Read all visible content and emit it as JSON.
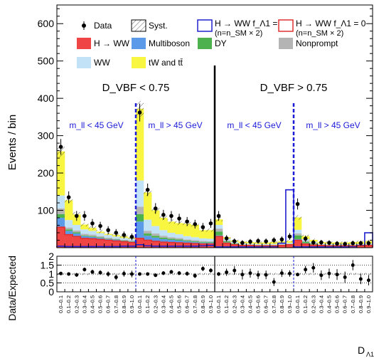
{
  "chart_data": {
    "type": "bar",
    "stacked": true,
    "ylabel": "Events / bin",
    "ratio_ylabel": "Data/Expected",
    "xlabel": "D",
    "xlabel_sub": "Λ1",
    "ylim": [
      0,
      650
    ],
    "yticks": [
      100,
      200,
      300,
      400,
      500,
      600
    ],
    "ratio_ylim": [
      0,
      2
    ],
    "ratio_yticks": [
      "0",
      "0.5",
      "1",
      "1.5",
      "2"
    ],
    "categories": [
      "0.0–0.1",
      "0.1–0.2",
      "0.2–0.3",
      "0.3–0.4",
      "0.4–0.5",
      "0.5–0.6",
      "0.6–0.7",
      "0.7–0.8",
      "0.8–0.9",
      "0.9–1.0",
      "0.0–0.1",
      "0.1–0.2",
      "0.2–0.3",
      "0.3–0.4",
      "0.4–0.5",
      "0.5–0.6",
      "0.6–0.7",
      "0.7–0.8",
      "0.8–0.9",
      "0.9–1.0",
      "0.0–0.1",
      "0.1–0.2",
      "0.2–0.3",
      "0.3–0.4",
      "0.4–0.5",
      "0.5–0.6",
      "0.6–0.7",
      "0.7–0.8",
      "0.8–0.9",
      "0.9–1.0",
      "0.0–0.1",
      "0.1–0.2",
      "0.2–0.3",
      "0.3–0.4",
      "0.4–0.5",
      "0.5–0.6",
      "0.6–0.7",
      "0.7–0.8",
      "0.8–0.9",
      "0.9–1.0"
    ],
    "regions": {
      "dvbf": [
        "D_VBF < 0.75",
        "D_VBF > 0.75"
      ],
      "mll": [
        "m_ll < 45 GeV",
        "m_ll > 45 GeV",
        "m_ll < 45 GeV",
        "m_ll > 45 GeV"
      ]
    },
    "series": [
      {
        "name": "H → WW",
        "color": "#f04545",
        "values": [
          55,
          35,
          30,
          25,
          24,
          22,
          20,
          18,
          16,
          14,
          25,
          20,
          17,
          15,
          14,
          13,
          12,
          11,
          10,
          10,
          30,
          12,
          8,
          6,
          6,
          5,
          5,
          5,
          6,
          8,
          20,
          10,
          7,
          6,
          5,
          5,
          5,
          5,
          5,
          6
        ]
      },
      {
        "name": "Multiboson",
        "color": "#5b9ae8",
        "values": [
          25,
          10,
          8,
          6,
          5,
          4,
          3,
          3,
          2,
          2,
          45,
          12,
          10,
          8,
          7,
          6,
          5,
          4,
          3,
          3,
          3,
          2,
          1,
          1,
          1,
          1,
          1,
          1,
          1,
          1,
          3,
          2,
          2,
          1,
          1,
          1,
          1,
          1,
          1,
          1
        ]
      },
      {
        "name": "DY",
        "color": "#4db24d",
        "values": [
          10,
          4,
          3,
          2,
          2,
          2,
          1,
          1,
          1,
          1,
          20,
          6,
          5,
          4,
          3,
          3,
          2,
          2,
          2,
          2,
          10,
          3,
          2,
          1,
          1,
          1,
          1,
          1,
          1,
          1,
          10,
          4,
          2,
          1,
          1,
          1,
          1,
          1,
          1,
          1
        ]
      },
      {
        "name": "Nonprompt",
        "color": "#b4b4b4",
        "values": [
          15,
          5,
          5,
          4,
          4,
          3,
          3,
          2,
          2,
          2,
          20,
          7,
          6,
          5,
          4,
          4,
          3,
          3,
          3,
          2,
          8,
          2,
          2,
          1,
          1,
          1,
          1,
          1,
          1,
          1,
          5,
          2,
          2,
          1,
          1,
          1,
          1,
          1,
          1,
          1
        ]
      },
      {
        "name": "WW",
        "color": "#c2e2f8",
        "values": [
          35,
          20,
          15,
          12,
          10,
          8,
          7,
          6,
          5,
          5,
          70,
          30,
          20,
          15,
          12,
          10,
          9,
          8,
          7,
          7,
          10,
          5,
          3,
          3,
          2,
          2,
          2,
          2,
          2,
          2,
          10,
          5,
          3,
          2,
          2,
          2,
          2,
          2,
          2,
          2
        ]
      },
      {
        "name": "tW and tt̄",
        "color": "#f8f640",
        "values": [
          118,
          53,
          28,
          13,
          8,
          4,
          3,
          4,
          4,
          3,
          192,
          73,
          42,
          33,
          30,
          30,
          33,
          33,
          22,
          23,
          15,
          4,
          3,
          4,
          4,
          4,
          4,
          5,
          6,
          5,
          33,
          8,
          5,
          4,
          4,
          4,
          4,
          5,
          6,
          7
        ]
      }
    ],
    "bsm_fa1_1": {
      "name": "H → WW f_Λ1 = 1",
      "sub": "(n=n_SM × 2)",
      "color": "#2020d0",
      "values": [
        4,
        3,
        3,
        3,
        3,
        3,
        3,
        3,
        4,
        4,
        8,
        5,
        4,
        4,
        4,
        4,
        4,
        4,
        5,
        6,
        2,
        2,
        2,
        2,
        2,
        2,
        3,
        3,
        12,
        155,
        2,
        2,
        2,
        2,
        2,
        2,
        2,
        3,
        6,
        40
      ]
    },
    "bsm_fa1_0": {
      "name": "H → WW f_Λ1 = 0",
      "sub": "(n=n_SM × 2)",
      "color": "#e03030",
      "values": [
        55,
        35,
        30,
        25,
        24,
        22,
        20,
        18,
        16,
        14,
        25,
        20,
        17,
        15,
        14,
        13,
        12,
        11,
        10,
        10,
        30,
        12,
        8,
        6,
        6,
        5,
        5,
        5,
        6,
        8,
        20,
        10,
        7,
        6,
        5,
        5,
        5,
        5,
        5,
        6
      ]
    },
    "data": [
      270,
      135,
      85,
      85,
      65,
      58,
      47,
      40,
      34,
      29,
      362,
      155,
      105,
      88,
      85,
      78,
      70,
      63,
      55,
      65,
      85,
      25,
      17,
      13,
      16,
      18,
      17,
      20,
      22,
      30,
      117,
      24,
      14,
      14,
      13,
      11,
      10,
      12,
      12,
      12
    ],
    "ratio": [
      1.03,
      1.0,
      0.95,
      1.25,
      1.12,
      1.08,
      1.0,
      0.82,
      1.02,
      1.0,
      1.0,
      1.0,
      0.93,
      1.05,
      1.12,
      1.05,
      1.02,
      0.9,
      1.3,
      1.2,
      1.0,
      1.1,
      1.2,
      0.97,
      1.05,
      0.95,
      0.95,
      0.55,
      1.05,
      1.03,
      0.97,
      1.25,
      1.35,
      0.93,
      1.03,
      0.97,
      0.82,
      1.5,
      0.72,
      0.65
    ],
    "legend": {
      "data": "Data",
      "syst": "Syst."
    }
  }
}
